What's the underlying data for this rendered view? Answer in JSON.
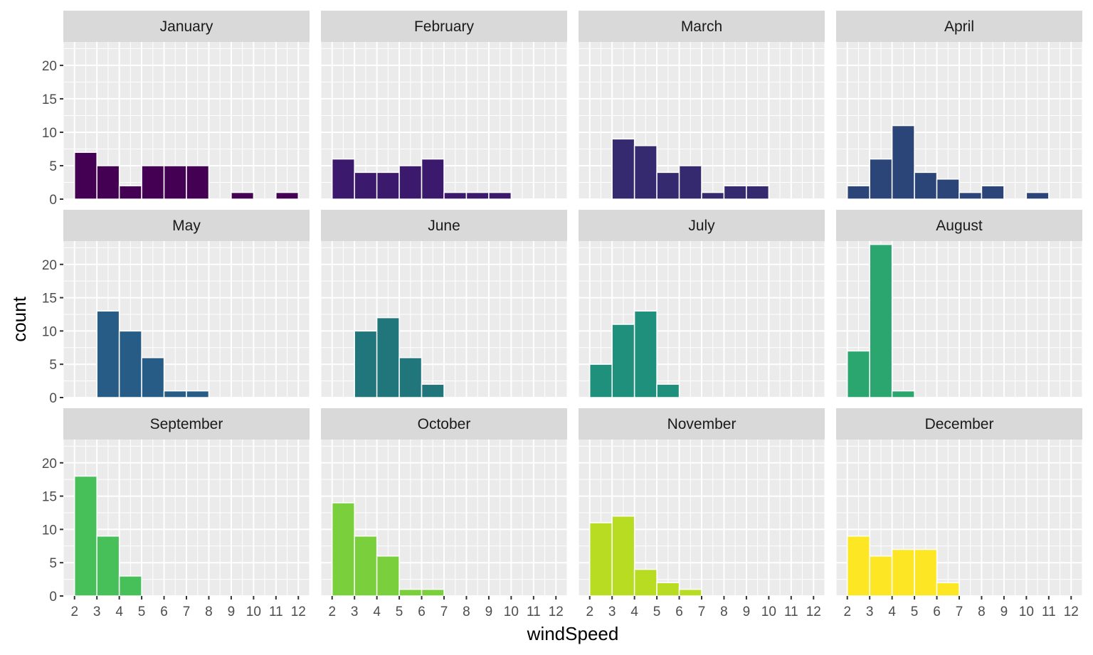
{
  "chart_data": {
    "type": "bar",
    "xlabel": "windSpeed",
    "ylabel": "count",
    "xlim": [
      1.5,
      12.5
    ],
    "ylim": [
      0,
      23.5
    ],
    "x_ticks": [
      2,
      3,
      4,
      5,
      6,
      7,
      8,
      9,
      10,
      11,
      12
    ],
    "y_ticks": [
      0,
      5,
      10,
      15,
      20
    ],
    "bin_width": 1,
    "grid": true,
    "panels": [
      {
        "name": "January",
        "color": "#440154",
        "bars": [
          {
            "x": 2.5,
            "count": 7
          },
          {
            "x": 3.5,
            "count": 5
          },
          {
            "x": 4.5,
            "count": 2
          },
          {
            "x": 5.5,
            "count": 5
          },
          {
            "x": 6.5,
            "count": 5
          },
          {
            "x": 7.5,
            "count": 5
          },
          {
            "x": 9.5,
            "count": 1
          },
          {
            "x": 11.5,
            "count": 1
          }
        ]
      },
      {
        "name": "February",
        "color": "#3B1A6D",
        "bars": [
          {
            "x": 2.5,
            "count": 6
          },
          {
            "x": 3.5,
            "count": 4
          },
          {
            "x": 4.5,
            "count": 4
          },
          {
            "x": 5.5,
            "count": 5
          },
          {
            "x": 6.5,
            "count": 6
          },
          {
            "x": 7.5,
            "count": 1
          },
          {
            "x": 8.5,
            "count": 1
          },
          {
            "x": 9.5,
            "count": 1
          }
        ]
      },
      {
        "name": "March",
        "color": "#35296F",
        "bars": [
          {
            "x": 3.5,
            "count": 9
          },
          {
            "x": 4.5,
            "count": 8
          },
          {
            "x": 5.5,
            "count": 4
          },
          {
            "x": 6.5,
            "count": 5
          },
          {
            "x": 7.5,
            "count": 1
          },
          {
            "x": 8.5,
            "count": 2
          },
          {
            "x": 9.5,
            "count": 2
          }
        ]
      },
      {
        "name": "April",
        "color": "#2C4578",
        "bars": [
          {
            "x": 2.5,
            "count": 2
          },
          {
            "x": 3.5,
            "count": 6
          },
          {
            "x": 4.5,
            "count": 11
          },
          {
            "x": 5.5,
            "count": 4
          },
          {
            "x": 6.5,
            "count": 3
          },
          {
            "x": 7.5,
            "count": 1
          },
          {
            "x": 8.5,
            "count": 2
          },
          {
            "x": 10.5,
            "count": 1
          }
        ]
      },
      {
        "name": "May",
        "color": "#265C85",
        "bars": [
          {
            "x": 3.5,
            "count": 13
          },
          {
            "x": 4.5,
            "count": 10
          },
          {
            "x": 5.5,
            "count": 6
          },
          {
            "x": 6.5,
            "count": 1
          },
          {
            "x": 7.5,
            "count": 1
          }
        ]
      },
      {
        "name": "June",
        "color": "#21767C",
        "bars": [
          {
            "x": 3.5,
            "count": 10
          },
          {
            "x": 4.5,
            "count": 12
          },
          {
            "x": 5.5,
            "count": 6
          },
          {
            "x": 6.5,
            "count": 2
          }
        ]
      },
      {
        "name": "July",
        "color": "#1F907C",
        "bars": [
          {
            "x": 2.5,
            "count": 5
          },
          {
            "x": 3.5,
            "count": 11
          },
          {
            "x": 4.5,
            "count": 13
          },
          {
            "x": 5.5,
            "count": 2
          }
        ]
      },
      {
        "name": "August",
        "color": "#2BA66F",
        "bars": [
          {
            "x": 2.5,
            "count": 7
          },
          {
            "x": 3.5,
            "count": 23
          },
          {
            "x": 4.5,
            "count": 1
          }
        ]
      },
      {
        "name": "September",
        "color": "#48C05A",
        "bars": [
          {
            "x": 2.5,
            "count": 18
          },
          {
            "x": 3.5,
            "count": 9
          },
          {
            "x": 4.5,
            "count": 3
          }
        ]
      },
      {
        "name": "October",
        "color": "#7AD03C",
        "bars": [
          {
            "x": 2.5,
            "count": 14
          },
          {
            "x": 3.5,
            "count": 9
          },
          {
            "x": 4.5,
            "count": 6
          },
          {
            "x": 5.5,
            "count": 1
          },
          {
            "x": 6.5,
            "count": 1
          }
        ]
      },
      {
        "name": "November",
        "color": "#B8DC22",
        "bars": [
          {
            "x": 2.5,
            "count": 11
          },
          {
            "x": 3.5,
            "count": 12
          },
          {
            "x": 4.5,
            "count": 4
          },
          {
            "x": 5.5,
            "count": 2
          },
          {
            "x": 6.5,
            "count": 1
          }
        ]
      },
      {
        "name": "December",
        "color": "#FDE725",
        "bars": [
          {
            "x": 2.5,
            "count": 9
          },
          {
            "x": 3.5,
            "count": 6
          },
          {
            "x": 4.5,
            "count": 7
          },
          {
            "x": 5.5,
            "count": 7
          },
          {
            "x": 6.5,
            "count": 2
          }
        ]
      }
    ]
  }
}
